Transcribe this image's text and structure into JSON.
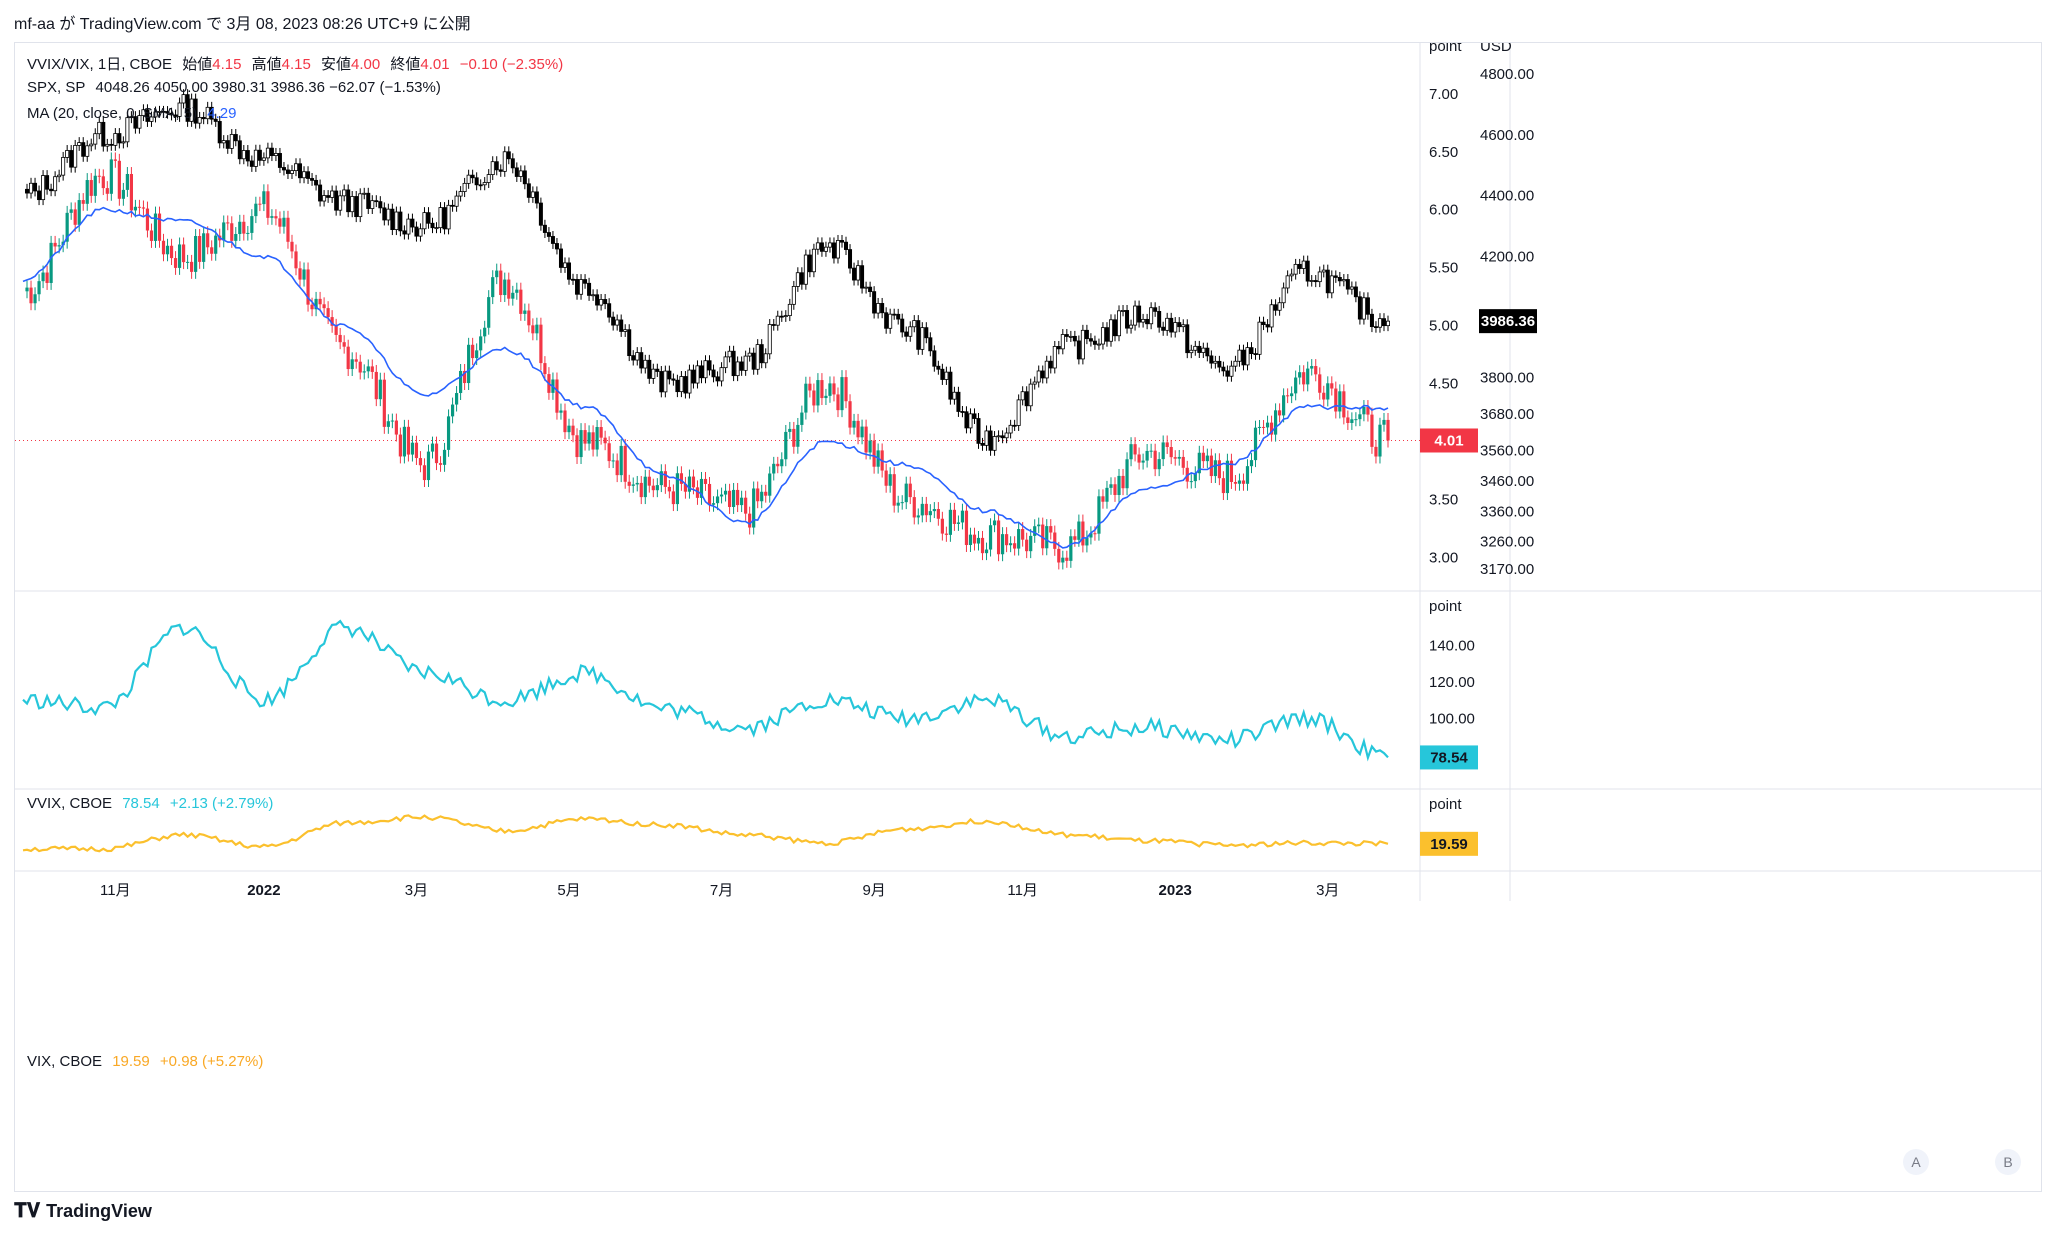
{
  "header": {
    "title": "mf-aa が TradingView.com で 3月 08, 2023 08:26 UTC+9 に公開"
  },
  "legend_main": {
    "symbol": "VVIX/VIX, 1日, CBOE",
    "open_label": "始値",
    "open": "4.15",
    "high_label": "高値",
    "high": "4.15",
    "low_label": "安値",
    "low": "4.00",
    "close_label": "終値",
    "close": "4.01",
    "change": "−0.10 (−2.35%)"
  },
  "legend_spx": {
    "symbol": "SPX, SP",
    "values": "4048.26  4050.00  3980.31  3986.36  −62.07 (−1.53%)"
  },
  "legend_ma": {
    "label": "MA (20, close, 0, SMA, 5)",
    "value": "4.29"
  },
  "legend_vvix": {
    "symbol": "VVIX, CBOE",
    "value": "78.54",
    "change": "+2.13 (+2.79%)"
  },
  "legend_vix": {
    "symbol": "VIX, CBOE",
    "value": "19.59",
    "change": "+0.98 (+5.27%)"
  },
  "axes": {
    "main_left_unit": "point",
    "main_right_unit": "USD",
    "main_left_ticks": [
      "7.00",
      "6.50",
      "6.00",
      "5.50",
      "5.00",
      "4.50",
      "3.50",
      "3.00"
    ],
    "main_right_ticks": [
      "4800.00",
      "4600.00",
      "4400.00",
      "4200.00",
      "3800.00",
      "3680.00",
      "3560.00",
      "3460.00",
      "3360.00",
      "3260.00",
      "3170.00"
    ],
    "vvix_unit": "point",
    "vvix_ticks": [
      "140.00",
      "120.00",
      "100.00"
    ],
    "vix_unit": "point",
    "x_ticks": [
      "11月",
      "2022",
      "3月",
      "5月",
      "7月",
      "9月",
      "11月",
      "2023",
      "3月"
    ]
  },
  "badges": {
    "spx_last": "3986.36",
    "ratio_last": "4.01",
    "vvix_last": "78.54",
    "vix_last": "19.59"
  },
  "scale_buttons": {
    "a": "A",
    "b": "B"
  },
  "footer": {
    "brand": "TradingView"
  },
  "colors": {
    "up": "#089981",
    "down": "#f23645",
    "spx": "#000000",
    "ma": "#2962ff",
    "vvix": "#26c6da",
    "vix": "#fbc02d"
  },
  "chart_data": [
    {
      "type": "line",
      "title": "VVIX/VIX, 1日, CBOE (candles) with SPX overlay and MA(20)",
      "x": [
        "2021-10",
        "2021-11",
        "2021-12",
        "2022-01",
        "2022-02",
        "2022-03",
        "2022-04",
        "2022-05",
        "2022-06",
        "2022-07",
        "2022-08",
        "2022-09",
        "2022-10",
        "2022-11",
        "2022-12",
        "2023-01",
        "2023-02",
        "2023-03"
      ],
      "series": [
        {
          "name": "VVIX/VIX",
          "values": [
            5.3,
            6.3,
            5.6,
            6.0,
            4.8,
            3.8,
            5.4,
            4.0,
            3.6,
            3.4,
            4.5,
            3.5,
            3.2,
            3.1,
            3.9,
            3.7,
            4.6,
            4.01
          ]
        },
        {
          "name": "SPX",
          "values": [
            4400,
            4600,
            4690,
            4520,
            4380,
            4300,
            4520,
            4100,
            3780,
            3850,
            4230,
            3960,
            3600,
            3900,
            4010,
            3830,
            4150,
            3986.36
          ]
        },
        {
          "name": "MA (20, close, 0, SMA, 5)",
          "values": [
            5.4,
            6.0,
            5.9,
            5.6,
            5.0,
            4.4,
            4.8,
            4.3,
            3.7,
            3.3,
            4.0,
            3.8,
            3.4,
            3.1,
            3.6,
            3.8,
            4.3,
            4.29
          ]
        }
      ],
      "ylim_left": [
        2.85,
        7.3
      ],
      "ylim_right": [
        3150,
        4850
      ]
    },
    {
      "type": "line",
      "title": "VVIX, CBOE",
      "x": [
        "2021-10",
        "2021-11",
        "2021-12",
        "2022-01",
        "2022-02",
        "2022-03",
        "2022-04",
        "2022-05",
        "2022-06",
        "2022-07",
        "2022-08",
        "2022-09",
        "2022-10",
        "2022-11",
        "2022-12",
        "2023-01",
        "2023-02",
        "2023-03"
      ],
      "series": [
        {
          "name": "VVIX",
          "values": [
            110,
            106,
            150,
            110,
            150,
            125,
            110,
            125,
            105,
            95,
            110,
            100,
            110,
            90,
            95,
            88,
            100,
            78.54
          ]
        }
      ],
      "ylim": [
        70,
        160
      ]
    },
    {
      "type": "line",
      "title": "VIX, CBOE",
      "x": [
        "2021-10",
        "2021-11",
        "2021-12",
        "2022-01",
        "2022-02",
        "2022-03",
        "2022-04",
        "2022-05",
        "2022-06",
        "2022-07",
        "2022-08",
        "2022-09",
        "2022-10",
        "2022-11",
        "2022-12",
        "2023-01",
        "2023-02",
        "2023-03"
      ],
      "series": [
        {
          "name": "VIX",
          "values": [
            17,
            17,
            24,
            18,
            30,
            33,
            26,
            32,
            29,
            24,
            20,
            27,
            31,
            24,
            21,
            19,
            20,
            19.59
          ]
        }
      ],
      "ylim": [
        14,
        38
      ]
    }
  ]
}
